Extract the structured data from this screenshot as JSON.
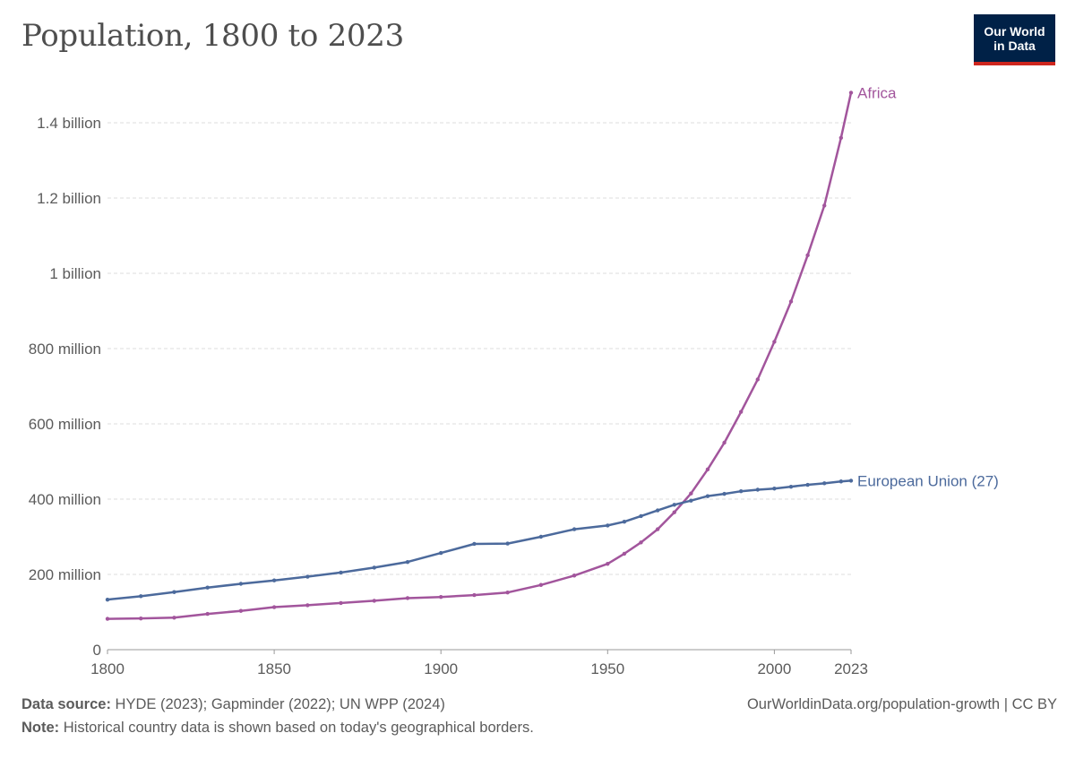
{
  "chart_data": {
    "type": "line",
    "title": "Population, 1800 to 2023",
    "xlim": [
      1800,
      2023
    ],
    "ylim": [
      0,
      1500000000
    ],
    "x_ticks": [
      {
        "value": 1800,
        "label": "1800"
      },
      {
        "value": 1850,
        "label": "1850"
      },
      {
        "value": 1900,
        "label": "1900"
      },
      {
        "value": 1950,
        "label": "1950"
      },
      {
        "value": 2000,
        "label": "2000"
      },
      {
        "value": 2023,
        "label": "2023"
      }
    ],
    "y_ticks": [
      {
        "value": 0,
        "label": "0"
      },
      {
        "value": 200000000,
        "label": "200 million"
      },
      {
        "value": 400000000,
        "label": "400 million"
      },
      {
        "value": 600000000,
        "label": "600 million"
      },
      {
        "value": 800000000,
        "label": "800 million"
      },
      {
        "value": 1000000000,
        "label": "1 billion"
      },
      {
        "value": 1200000000,
        "label": "1.2 billion"
      },
      {
        "value": 1400000000,
        "label": "1.4 billion"
      }
    ],
    "grid": "horizontal dashed",
    "legend": "labels at line ends",
    "series": [
      {
        "name": "Africa",
        "color": "#a2559c",
        "x": [
          1800,
          1810,
          1820,
          1830,
          1840,
          1850,
          1860,
          1870,
          1880,
          1890,
          1900,
          1910,
          1920,
          1930,
          1940,
          1950,
          1955,
          1960,
          1965,
          1970,
          1975,
          1980,
          1985,
          1990,
          1995,
          2000,
          2005,
          2010,
          2015,
          2020,
          2023
        ],
        "y": [
          82000000,
          83000000,
          85000000,
          95000000,
          103000000,
          113000000,
          118000000,
          124000000,
          130000000,
          137000000,
          140000000,
          145000000,
          152000000,
          172000000,
          197000000,
          228000000,
          255000000,
          285000000,
          320000000,
          365000000,
          415000000,
          479000000,
          550000000,
          632000000,
          718000000,
          818000000,
          925000000,
          1048000000,
          1180000000,
          1360000000,
          1480000000
        ]
      },
      {
        "name": "European Union (27)",
        "color": "#4c6a9c",
        "x": [
          1800,
          1810,
          1820,
          1830,
          1840,
          1850,
          1860,
          1870,
          1880,
          1890,
          1900,
          1910,
          1920,
          1930,
          1940,
          1950,
          1955,
          1960,
          1965,
          1970,
          1975,
          1980,
          1985,
          1990,
          1995,
          2000,
          2005,
          2010,
          2015,
          2020,
          2023
        ],
        "y": [
          133000000,
          142000000,
          153000000,
          165000000,
          175000000,
          184000000,
          194000000,
          205000000,
          218000000,
          233000000,
          257000000,
          281000000,
          282000000,
          300000000,
          320000000,
          330000000,
          340000000,
          355000000,
          370000000,
          385000000,
          396000000,
          408000000,
          414000000,
          421000000,
          425000000,
          428000000,
          433000000,
          438000000,
          442000000,
          447000000,
          449000000
        ]
      }
    ]
  },
  "source": {
    "label": "Data source:",
    "text": "HYDE (2023); Gapminder (2022); UN WPP (2024)"
  },
  "note": {
    "label": "Note:",
    "text": "Historical country data is shown based on today's geographical borders."
  },
  "credit": "OurWorldinData.org/population-growth | CC BY",
  "logo": {
    "line1": "Our World",
    "line2": "in Data"
  }
}
